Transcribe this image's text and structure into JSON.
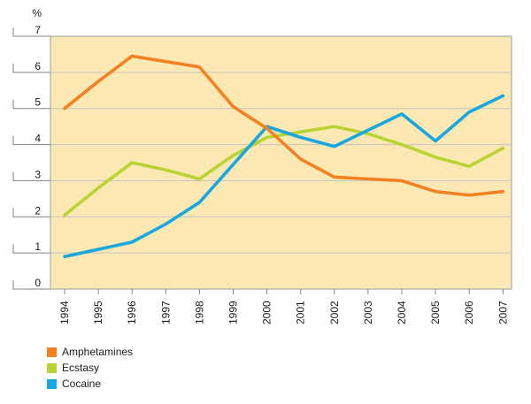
{
  "chart_data": {
    "type": "line",
    "title": "",
    "xlabel": "",
    "ylabel": "%",
    "ylim": [
      0,
      7
    ],
    "yticks": [
      0,
      1,
      2,
      3,
      4,
      5,
      6,
      7
    ],
    "grid": true,
    "legend_position": "bottom-left",
    "categories": [
      "1994",
      "1995",
      "1996",
      "1997",
      "1998",
      "1999",
      "2000",
      "2001",
      "2002",
      "2003",
      "2004",
      "2005",
      "2006",
      "2007"
    ],
    "series": [
      {
        "name": "Amphetamines",
        "color": "#F28123",
        "values": [
          5.0,
          5.75,
          6.45,
          6.3,
          6.15,
          5.05,
          4.45,
          3.6,
          3.1,
          3.05,
          3.0,
          2.7,
          2.6,
          2.7
        ]
      },
      {
        "name": "Ecstasy",
        "color": "#B8D432",
        "values": [
          2.05,
          2.8,
          3.5,
          3.3,
          3.05,
          3.7,
          4.2,
          4.35,
          4.5,
          4.3,
          4.0,
          3.65,
          3.4,
          3.9
        ]
      },
      {
        "name": "Cocaine",
        "color": "#18A8DF",
        "values": [
          0.9,
          1.1,
          1.3,
          1.8,
          2.4,
          3.45,
          4.5,
          4.2,
          3.95,
          4.4,
          4.85,
          4.1,
          4.9,
          5.35
        ]
      }
    ],
    "colors": {
      "plot_background": "#FBE8B3",
      "gridline": "#C4C4C4",
      "plot_border": "#9C9C9C",
      "axis_tick": "#808080",
      "label_text": "#1A1A1A"
    }
  }
}
